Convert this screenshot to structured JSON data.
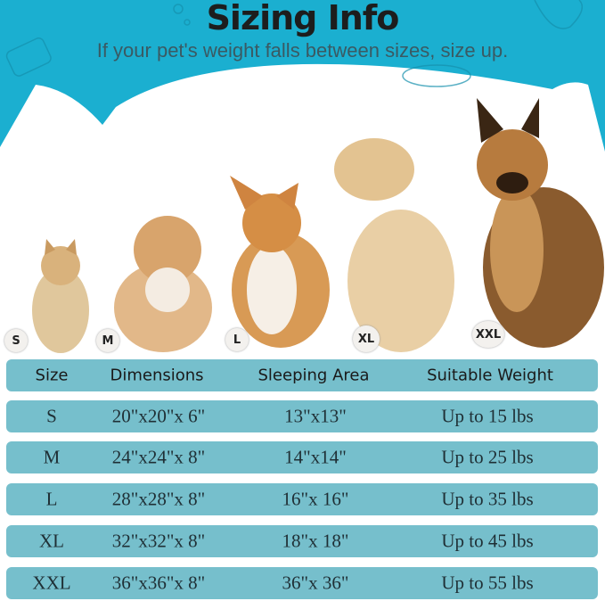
{
  "header": {
    "title": "Sizing Info",
    "subtitle": "If your pet's weight falls between sizes, size up."
  },
  "colors": {
    "band": "#1bafd0",
    "row": "#76bfcc"
  },
  "pets": [
    {
      "label": "S",
      "animal": "cat"
    },
    {
      "label": "M",
      "animal": "small-dog"
    },
    {
      "label": "L",
      "animal": "corgi"
    },
    {
      "label": "XL",
      "animal": "golden-retriever"
    },
    {
      "label": "XXL",
      "animal": "german-shepherd"
    }
  ],
  "table": {
    "headers": [
      "Size",
      "Dimensions",
      "Sleeping Area",
      "Suitable Weight"
    ],
    "rows": [
      [
        "S",
        "20\"x20\"x 6\"",
        "13\"x13\"",
        "Up to 15 lbs"
      ],
      [
        "M",
        "24\"x24\"x 8\"",
        "14\"x14\"",
        "Up to 25 lbs"
      ],
      [
        "L",
        "28\"x28\"x 8\"",
        "16\"x 16\"",
        "Up to 35 lbs"
      ],
      [
        "XL",
        "32\"x32\"x 8\"",
        "18\"x 18\"",
        "Up to 45 lbs"
      ],
      [
        "XXL",
        "36\"x36\"x 8\"",
        "36\"x 36\"",
        "Up to 55 lbs"
      ]
    ]
  }
}
